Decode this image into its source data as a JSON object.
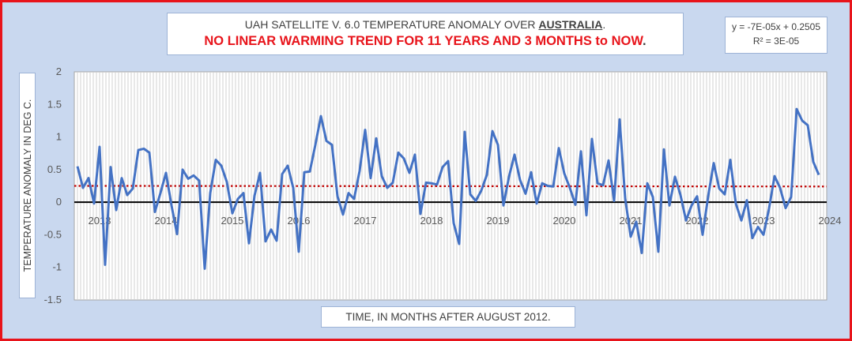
{
  "title": {
    "line1_prefix": "UAH SATELLITE V. 6.0 TEMPERATURE ANOMALY OVER ",
    "line1_region": "AUSTRALIA",
    "line1_suffix": ".",
    "line2_main": "NO LINEAR WARMING TREND FOR 11 YEARS AND 3 MONTHS to NOW",
    "line2_suffix": "."
  },
  "trendline_label": {
    "equation": "y = -7E-05x + 0.2505",
    "r_squared": "R² = 3E-05"
  },
  "colors": {
    "frame_border": "#e8141b",
    "frame_background": "#c9d8ef",
    "plot_background": "#ffffff",
    "series_line": "#4472c4",
    "trend_line": "#c00000",
    "zero_line": "#000000",
    "vertical_grid": "#d0d0d0",
    "title_emphasis": "#e8141b"
  },
  "chart_data": {
    "type": "line",
    "title": "UAH SATELLITE V. 6.0 TEMPERATURE ANOMALY OVER AUSTRALIA. NO LINEAR WARMING TREND FOR 11 YEARS AND 3 MONTHS to NOW.",
    "xlabel": "TIME, IN MONTHS AFTER AUGUST 2012.",
    "ylabel": "TEMPERATURE ANOMALY IN DEG C.",
    "ylim": [
      -1.5,
      2
    ],
    "y_ticks": [
      "2",
      "1.5",
      "1",
      "0.5",
      "0",
      "-0.5",
      "-1",
      "-1.5"
    ],
    "x_start": "2012-09",
    "x_end": "2023-11",
    "x_tick_labels": [
      "2013",
      "2014",
      "2015",
      "2016",
      "2017",
      "2018",
      "2019",
      "2020",
      "2021",
      "2022",
      "2023",
      "2024"
    ],
    "grid": "vertical monthly gridlines",
    "legend": "none",
    "series": [
      {
        "values": [
          0.55,
          0.22,
          0.37,
          -0.02,
          0.85,
          -0.96,
          0.54,
          -0.12,
          0.37,
          0.11,
          0.21,
          0.8,
          0.82,
          0.76,
          -0.15,
          0.14,
          0.45,
          -0.05,
          -0.49,
          0.5,
          0.36,
          0.41,
          0.33,
          -1.02,
          0.14,
          0.65,
          0.56,
          0.31,
          -0.17,
          0.05,
          0.14,
          -0.63,
          0.1,
          0.45,
          -0.6,
          -0.42,
          -0.59,
          0.43,
          0.56,
          0.22,
          -0.76,
          0.46,
          0.47,
          0.88,
          1.32,
          0.94,
          0.88,
          0.09,
          -0.19,
          0.14,
          0.05,
          0.48,
          1.11,
          0.37,
          0.98,
          0.4,
          0.22,
          0.3,
          0.76,
          0.67,
          0.45,
          0.73,
          -0.18,
          0.3,
          0.29,
          0.27,
          0.54,
          0.63,
          -0.32,
          -0.64,
          1.08,
          0.12,
          0.02,
          0.18,
          0.42,
          1.09,
          0.88,
          -0.05,
          0.39,
          0.73,
          0.34,
          0.13,
          0.46,
          -0.02,
          0.29,
          0.25,
          0.24,
          0.83,
          0.44,
          0.22,
          -0.04,
          0.78,
          -0.2,
          0.97,
          0.29,
          0.26,
          0.64,
          0.02,
          1.27,
          0.06,
          -0.53,
          -0.3,
          -0.78,
          0.29,
          0.08,
          -0.76,
          0.81,
          -0.05,
          0.39,
          0.11,
          -0.28,
          -0.05,
          0.09,
          -0.5,
          0.09,
          0.6,
          0.21,
          0.12,
          0.65,
          -0.02,
          -0.28,
          0.03,
          -0.55,
          -0.38,
          -0.5,
          -0.1,
          0.4,
          0.22,
          -0.09,
          0.08,
          1.43,
          1.25,
          1.18,
          0.62,
          0.42
        ]
      }
    ],
    "trendline": {
      "type": "linear",
      "slope": -7e-05,
      "intercept": 0.2505
    }
  },
  "axis_labels": {
    "y_axis": "TEMPERATURE ANOMALY IN DEG C.",
    "x_axis": "TIME, IN MONTHS AFTER AUGUST 2012."
  }
}
